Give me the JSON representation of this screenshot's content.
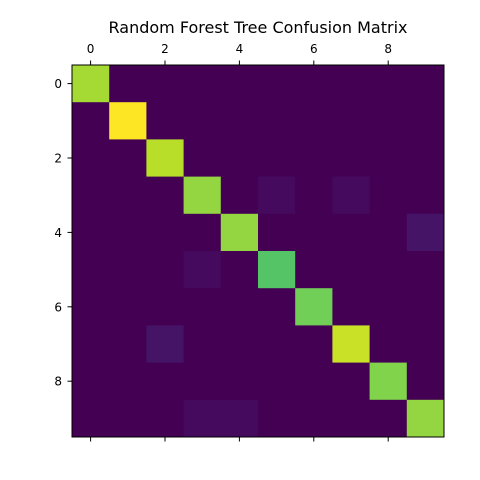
{
  "chart_data": {
    "type": "heatmap",
    "title": "Random Forest Tree Confusion Matrix",
    "xlabel": "",
    "ylabel": "",
    "x_tick_position": "top",
    "x_tick_labels": [
      "0",
      "2",
      "4",
      "6",
      "8"
    ],
    "y_tick_labels": [
      "0",
      "2",
      "4",
      "6",
      "8"
    ],
    "x_tick_values": [
      0,
      2,
      4,
      6,
      8
    ],
    "y_tick_values": [
      0,
      2,
      4,
      6,
      8
    ],
    "rows": [
      0,
      1,
      2,
      3,
      4,
      5,
      6,
      7,
      8,
      9
    ],
    "columns": [
      0,
      1,
      2,
      3,
      4,
      5,
      6,
      7,
      8,
      9
    ],
    "colormap": "viridis",
    "vmin": 0,
    "vmax": 37,
    "grid": false,
    "values": [
      [
        32,
        0,
        0,
        0,
        0,
        0,
        0,
        0,
        0,
        0
      ],
      [
        0,
        37,
        0,
        0,
        0,
        0,
        0,
        0,
        0,
        0
      ],
      [
        0,
        0,
        33,
        0,
        0,
        0,
        0,
        0,
        0,
        0
      ],
      [
        0,
        0,
        0,
        31,
        0,
        1,
        0,
        1,
        0,
        0
      ],
      [
        0,
        0,
        0,
        0,
        31,
        0,
        0,
        0,
        0,
        2
      ],
      [
        0,
        0,
        0,
        1,
        0,
        27,
        0,
        0,
        0,
        0
      ],
      [
        0,
        0,
        0,
        0,
        0,
        0,
        29,
        0,
        0,
        0
      ],
      [
        0,
        0,
        2,
        0,
        0,
        0,
        0,
        34,
        0,
        0
      ],
      [
        0,
        0,
        0,
        0,
        0,
        0,
        0,
        0,
        30,
        0
      ],
      [
        0,
        0,
        0,
        1,
        1,
        0,
        0,
        0,
        0,
        31
      ]
    ]
  }
}
